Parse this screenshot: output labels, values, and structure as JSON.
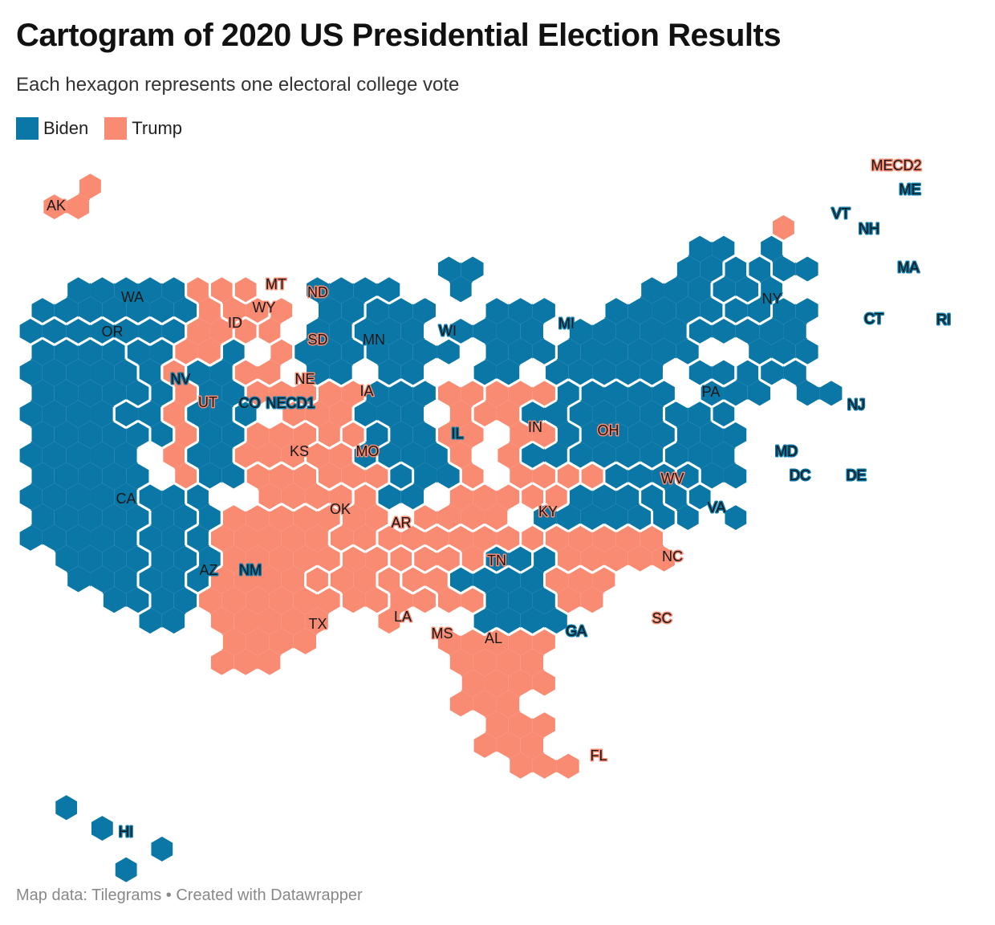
{
  "header": {
    "title": "Cartogram of 2020 US Presidential Election Results",
    "subtitle": "Each hexagon represents one electoral college vote"
  },
  "legend": [
    {
      "label": "Biden",
      "color": "#0a77a6"
    },
    {
      "label": "Trump",
      "color": "#f98b72"
    }
  ],
  "footer": {
    "source": "Map data: Tilegrams",
    "separator": "•",
    "credit": "Created with Datawrapper"
  },
  "colors": {
    "biden": "#0a77a6",
    "trump": "#f98b72",
    "border": "#ffffff",
    "label_text": "#181818"
  },
  "map": {
    "unit": "one hexagon = one electoral college vote",
    "states": [
      {
        "code": "AK",
        "winner": "Trump",
        "votes": 3
      },
      {
        "code": "WA",
        "winner": "Biden",
        "votes": 12
      },
      {
        "code": "OR",
        "winner": "Biden",
        "votes": 7
      },
      {
        "code": "CA",
        "winner": "Biden",
        "votes": 55
      },
      {
        "code": "NV",
        "winner": "Biden",
        "votes": 6
      },
      {
        "code": "ID",
        "winner": "Trump",
        "votes": 4
      },
      {
        "code": "MT",
        "winner": "Trump",
        "votes": 3
      },
      {
        "code": "WY",
        "winner": "Trump",
        "votes": 3
      },
      {
        "code": "UT",
        "winner": "Trump",
        "votes": 6
      },
      {
        "code": "CO",
        "winner": "Biden",
        "votes": 9
      },
      {
        "code": "AZ",
        "winner": "Biden",
        "votes": 11
      },
      {
        "code": "NM",
        "winner": "Biden",
        "votes": 5
      },
      {
        "code": "ND",
        "winner": "Trump",
        "votes": 3
      },
      {
        "code": "SD",
        "winner": "Trump",
        "votes": 3
      },
      {
        "code": "NE",
        "winner": "Trump",
        "votes": 4
      },
      {
        "code": "NECD1",
        "winner": "Biden",
        "votes": 1
      },
      {
        "code": "KS",
        "winner": "Trump",
        "votes": 6
      },
      {
        "code": "OK",
        "winner": "Trump",
        "votes": 7
      },
      {
        "code": "TX",
        "winner": "Trump",
        "votes": 38
      },
      {
        "code": "MN",
        "winner": "Biden",
        "votes": 10
      },
      {
        "code": "IA",
        "winner": "Trump",
        "votes": 6
      },
      {
        "code": "MO",
        "winner": "Trump",
        "votes": 10
      },
      {
        "code": "AR",
        "winner": "Trump",
        "votes": 6
      },
      {
        "code": "LA",
        "winner": "Trump",
        "votes": 8
      },
      {
        "code": "WI",
        "winner": "Biden",
        "votes": 10
      },
      {
        "code": "IL",
        "winner": "Biden",
        "votes": 20
      },
      {
        "code": "MS",
        "winner": "Trump",
        "votes": 6
      },
      {
        "code": "MI",
        "winner": "Biden",
        "votes": 16
      },
      {
        "code": "IN",
        "winner": "Trump",
        "votes": 11
      },
      {
        "code": "KY",
        "winner": "Trump",
        "votes": 8
      },
      {
        "code": "TN",
        "winner": "Trump",
        "votes": 11
      },
      {
        "code": "AL",
        "winner": "Trump",
        "votes": 9
      },
      {
        "code": "OH",
        "winner": "Trump",
        "votes": 18
      },
      {
        "code": "GA",
        "winner": "Biden",
        "votes": 16
      },
      {
        "code": "FL",
        "winner": "Trump",
        "votes": 29
      },
      {
        "code": "WV",
        "winner": "Trump",
        "votes": 5
      },
      {
        "code": "VA",
        "winner": "Biden",
        "votes": 13
      },
      {
        "code": "NC",
        "winner": "Trump",
        "votes": 15
      },
      {
        "code": "SC",
        "winner": "Trump",
        "votes": 9
      },
      {
        "code": "PA",
        "winner": "Biden",
        "votes": 20
      },
      {
        "code": "NY",
        "winner": "Biden",
        "votes": 29
      },
      {
        "code": "NJ",
        "winner": "Biden",
        "votes": 14
      },
      {
        "code": "MD",
        "winner": "Biden",
        "votes": 10
      },
      {
        "code": "DE",
        "winner": "Biden",
        "votes": 3
      },
      {
        "code": "DC",
        "winner": "Biden",
        "votes": 3
      },
      {
        "code": "VT",
        "winner": "Biden",
        "votes": 3
      },
      {
        "code": "NH",
        "winner": "Biden",
        "votes": 4
      },
      {
        "code": "MA",
        "winner": "Biden",
        "votes": 11
      },
      {
        "code": "CT",
        "winner": "Biden",
        "votes": 7
      },
      {
        "code": "RI",
        "winner": "Biden",
        "votes": 4
      },
      {
        "code": "ME",
        "winner": "Biden",
        "votes": 3
      },
      {
        "code": "MECD2",
        "winner": "Trump",
        "votes": 1
      },
      {
        "code": "HI",
        "winner": "Biden",
        "votes": 4
      }
    ]
  }
}
